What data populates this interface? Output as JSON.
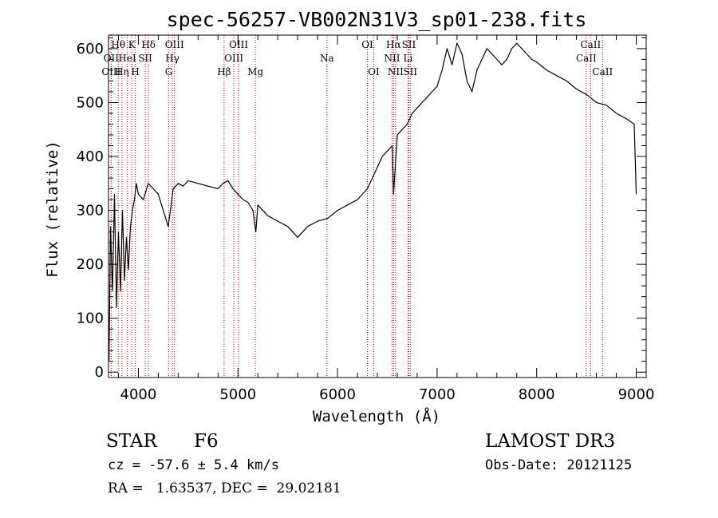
{
  "chart_data": {
    "type": "line",
    "title": "spec-56257-VB002N31V3_sp01-238.fits",
    "xlabel": "Wavelength (Å)",
    "ylabel": "Flux (relative)",
    "xlim": [
      3700,
      9100
    ],
    "ylim": [
      -10,
      625
    ],
    "xticks": [
      4000,
      5000,
      6000,
      7000,
      8000,
      9000
    ],
    "yticks": [
      0,
      100,
      200,
      300,
      400,
      500,
      600
    ],
    "line_color": "#000000",
    "marker_color": "#cc0000",
    "grid": false,
    "series": [
      {
        "x": [
          3705,
          3720,
          3740,
          3760,
          3780,
          3800,
          3820,
          3840,
          3860,
          3880,
          3900,
          3920,
          3940,
          3960,
          3980,
          4000,
          4050,
          4100,
          4150,
          4200,
          4250,
          4300,
          4350,
          4400,
          4450,
          4500,
          4600,
          4700,
          4800,
          4850,
          4900,
          4950,
          5000,
          5050,
          5100,
          5150,
          5180,
          5200,
          5300,
          5400,
          5500,
          5600,
          5700,
          5800,
          5900,
          6000,
          6100,
          6200,
          6300,
          6350,
          6400,
          6450,
          6500,
          6550,
          6563,
          6600,
          6650,
          6700,
          6750,
          6800,
          6850,
          6900,
          6950,
          7000,
          7050,
          7100,
          7150,
          7200,
          7250,
          7300,
          7350,
          7400,
          7450,
          7500,
          7550,
          7600,
          7650,
          7700,
          7750,
          7800,
          7850,
          7900,
          7950,
          8000,
          8100,
          8200,
          8300,
          8400,
          8500,
          8600,
          8700,
          8800,
          8900,
          8980,
          9000
        ],
        "y": [
          20,
          270,
          150,
          330,
          120,
          260,
          150,
          300,
          170,
          250,
          190,
          270,
          300,
          320,
          350,
          330,
          320,
          350,
          340,
          330,
          300,
          270,
          340,
          350,
          345,
          355,
          350,
          345,
          340,
          350,
          355,
          340,
          330,
          320,
          315,
          300,
          260,
          310,
          290,
          280,
          270,
          250,
          270,
          280,
          285,
          300,
          310,
          320,
          340,
          360,
          380,
          400,
          410,
          420,
          330,
          440,
          450,
          460,
          480,
          490,
          500,
          510,
          520,
          530,
          560,
          600,
          570,
          610,
          590,
          540,
          520,
          560,
          580,
          600,
          590,
          580,
          570,
          580,
          600,
          610,
          600,
          590,
          580,
          575,
          560,
          550,
          540,
          525,
          515,
          500,
          495,
          480,
          470,
          460,
          330
        ]
      }
    ],
    "line_markers": [
      {
        "label": "Hθ",
        "x": 3798,
        "row": 0
      },
      {
        "label": "OII",
        "x": 3727,
        "row": 1
      },
      {
        "label": "OIII",
        "x": 3727,
        "row": 2
      },
      {
        "label": "Hη",
        "x": 3835,
        "row": 2
      },
      {
        "label": "HeI",
        "x": 3889,
        "row": 1
      },
      {
        "label": "K",
        "x": 3934,
        "row": 0
      },
      {
        "label": "H",
        "x": 3969,
        "row": 2
      },
      {
        "label": "SII",
        "x": 4069,
        "row": 1
      },
      {
        "label": "Hδ",
        "x": 4102,
        "row": 0
      },
      {
        "label": "Hγ",
        "x": 4341,
        "row": 1
      },
      {
        "label": "OIII",
        "x": 4363,
        "row": 0
      },
      {
        "label": "G",
        "x": 4305,
        "row": 2
      },
      {
        "label": "Hβ",
        "x": 4861,
        "row": 2
      },
      {
        "label": "OIII",
        "x": 4959,
        "row": 1
      },
      {
        "label": "OIII",
        "x": 5007,
        "row": 0
      },
      {
        "label": "Mg",
        "x": 5175,
        "row": 2
      },
      {
        "label": "Na",
        "x": 5894,
        "row": 1
      },
      {
        "label": "OI",
        "x": 6300,
        "row": 0
      },
      {
        "label": "OI",
        "x": 6364,
        "row": 2
      },
      {
        "label": "Hα",
        "x": 6563,
        "row": 0
      },
      {
        "label": "NII",
        "x": 6548,
        "row": 1
      },
      {
        "label": "NII",
        "x": 6583,
        "row": 2
      },
      {
        "label": "SII",
        "x": 6716,
        "row": 0
      },
      {
        "label": "Li",
        "x": 6708,
        "row": 1
      },
      {
        "label": "SII",
        "x": 6731,
        "row": 2
      },
      {
        "label": "CaII",
        "x": 8498,
        "row": 1
      },
      {
        "label": "CaII",
        "x": 8542,
        "row": 0
      },
      {
        "label": "CaII",
        "x": 8662,
        "row": 2
      }
    ]
  },
  "info": {
    "object_class": "STAR",
    "subclass": "F6",
    "survey": "LAMOST DR3",
    "cz": "cz = -57.6 ± 5.4 km/s",
    "obs_date": "Obs-Date: 20121125",
    "coords": "RA =   1.63537, DEC =  29.02181"
  }
}
